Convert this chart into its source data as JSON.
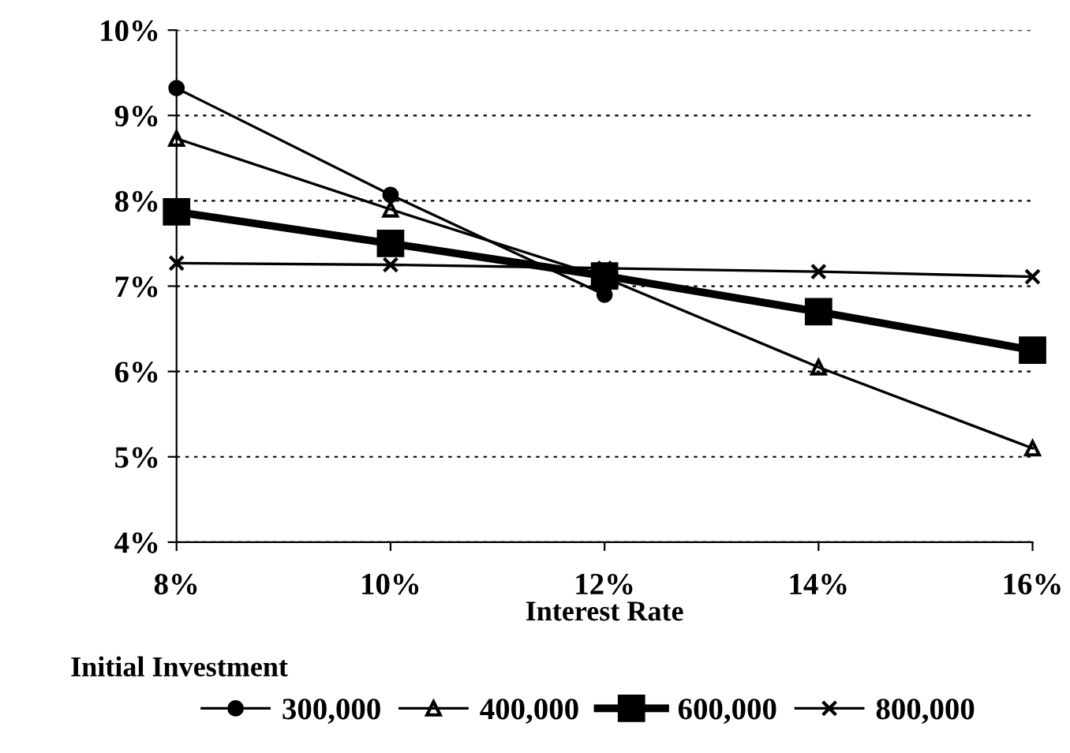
{
  "chart_data": {
    "type": "line",
    "xlabel": "Interest Rate",
    "legend_title": "Initial Investment",
    "x": [
      8,
      10,
      12,
      14,
      16
    ],
    "series": [
      {
        "name": "300,000",
        "color": "#000000",
        "marker": "circle",
        "values": [
          9.32,
          8.07,
          6.9,
          null,
          null
        ]
      },
      {
        "name": "400,000",
        "color": "#000000",
        "marker": "triangle",
        "values": [
          8.73,
          7.9,
          7.1,
          6.05,
          5.1
        ]
      },
      {
        "name": "600,000",
        "color": "#000000",
        "marker": "square",
        "values": [
          7.87,
          7.5,
          7.12,
          6.7,
          6.25
        ]
      },
      {
        "name": "800,000",
        "color": "#000000",
        "marker": "cross",
        "values": [
          7.27,
          7.25,
          7.21,
          7.17,
          7.11
        ]
      }
    ],
    "xlim": [
      8,
      16
    ],
    "ylim": [
      4,
      10
    ],
    "xticks": [
      {
        "value": 8,
        "label": "8%"
      },
      {
        "value": 10,
        "label": "10%"
      },
      {
        "value": 12,
        "label": "12%"
      },
      {
        "value": 14,
        "label": "14%"
      },
      {
        "value": 16,
        "label": "16%"
      }
    ],
    "yticks": [
      {
        "value": 4,
        "label": "4%"
      },
      {
        "value": 5,
        "label": "5%"
      },
      {
        "value": 6,
        "label": "6%"
      },
      {
        "value": 7,
        "label": "7%"
      },
      {
        "value": 8,
        "label": "8%"
      },
      {
        "value": 9,
        "label": "9%"
      },
      {
        "value": 10,
        "label": "10%"
      }
    ],
    "grid": "y",
    "legend": "bottom",
    "line_style": "solid"
  }
}
